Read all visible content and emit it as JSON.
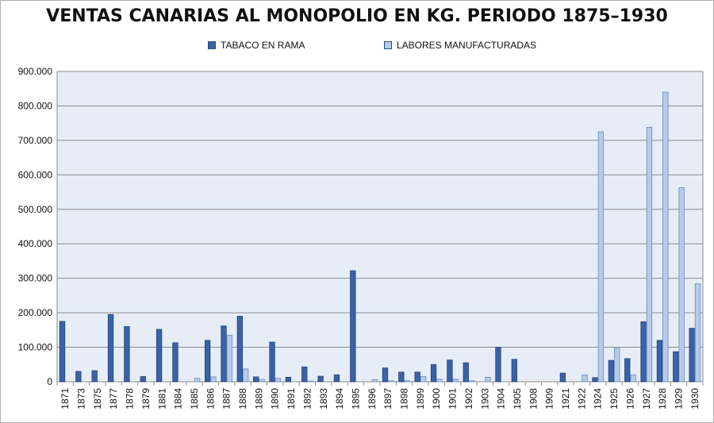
{
  "chart_data": {
    "type": "bar",
    "title": "VENTAS CANARIAS AL MONOPOLIO EN KG.  PERIODO  1875–1930",
    "xlabel": "",
    "ylabel": "",
    "ylim": [
      0,
      900000
    ],
    "yticks": [
      "0",
      "100.000",
      "200.000",
      "300.000",
      "400.000",
      "500.000",
      "600.000",
      "700.000",
      "800.000",
      "900.000"
    ],
    "grid": true,
    "legend_position": "top",
    "categories": [
      "1871",
      "1873",
      "1875",
      "1877",
      "1878",
      "1879",
      "1881",
      "1884",
      "1885",
      "1886",
      "1887",
      "1888",
      "1889",
      "1890",
      "1891",
      "1892",
      "1893",
      "1894",
      "1895",
      "1896",
      "1897",
      "1898",
      "1899",
      "1900",
      "1901",
      "1902",
      "1903",
      "1904",
      "1905",
      "1908",
      "1909",
      "1921",
      "1922",
      "1924",
      "1925",
      "1926",
      "1927",
      "1928",
      "1929",
      "1930"
    ],
    "series": [
      {
        "name": "TABACO EN RAMA",
        "color": "#3a62a7",
        "values": [
          175000,
          30000,
          32000,
          195000,
          160000,
          15000,
          152000,
          113000,
          0,
          120000,
          162000,
          190000,
          14000,
          115000,
          13000,
          43000,
          16000,
          20000,
          322000,
          0,
          40000,
          28000,
          28000,
          50000,
          63000,
          55000,
          0,
          100000,
          65000,
          0,
          0,
          25000,
          0,
          12000,
          62000,
          67000,
          174000,
          120000,
          87000,
          155000
        ]
      },
      {
        "name": "LABORES MANUFACTURADAS",
        "color": "#b7cbe8",
        "values": [
          0,
          0,
          0,
          0,
          0,
          0,
          0,
          0,
          10000,
          14000,
          135000,
          37000,
          7000,
          10000,
          0,
          2000,
          0,
          0,
          0,
          6000,
          3000,
          3000,
          15000,
          8000,
          7000,
          3000,
          13000,
          0,
          0,
          0,
          0,
          0,
          20000,
          725000,
          97000,
          20000,
          738000,
          840000,
          563000,
          284000
        ]
      }
    ]
  }
}
